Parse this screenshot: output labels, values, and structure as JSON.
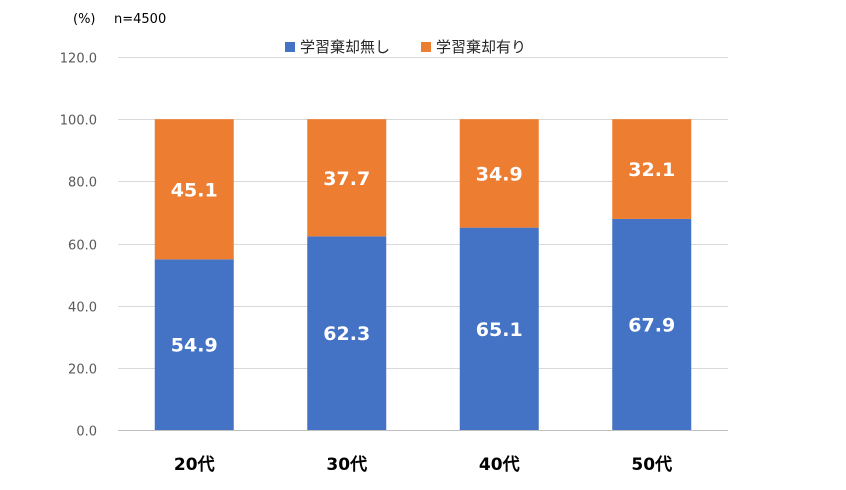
{
  "chart_data": {
    "type": "bar",
    "stacked": true,
    "unit_label": "(%)",
    "n_label": "n=4500",
    "categories": [
      "20代",
      "30代",
      "40代",
      "50代"
    ],
    "series": [
      {
        "name": "学習棄却無し",
        "color": "#4472C4",
        "values": [
          54.9,
          62.3,
          65.1,
          67.9
        ]
      },
      {
        "name": "学習棄却有り",
        "color": "#ED7D31",
        "values": [
          45.1,
          37.7,
          34.9,
          32.1
        ]
      }
    ],
    "ylim": [
      0,
      120
    ],
    "yticks": [
      "0.0",
      "20.0",
      "40.0",
      "60.0",
      "80.0",
      "100.0",
      "120.0"
    ],
    "grid": true,
    "legend": "top"
  }
}
